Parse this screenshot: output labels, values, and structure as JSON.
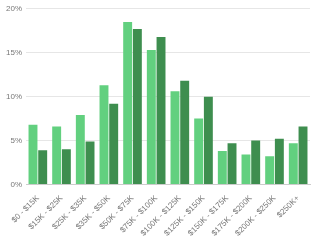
{
  "chart_data": {
    "type": "bar",
    "categories": [
      "$0 - $15K",
      "$15K - $25K",
      "$25K - $35K",
      "$35K - $50K",
      "$50K - $75K",
      "$75K - $100K",
      "$100K - $125K",
      "$125K - $150K",
      "$150K - $175K",
      "$175K - $200K",
      "$200K - $250K",
      "$250K+"
    ],
    "series": [
      {
        "color": "#62d07f",
        "values": [
          6.8,
          6.6,
          7.9,
          11.3,
          18.5,
          15.3,
          10.6,
          7.5,
          3.8,
          3.4,
          3.2,
          4.7
        ]
      },
      {
        "color": "#3e8e4f",
        "values": [
          3.9,
          4.0,
          4.9,
          9.2,
          17.7,
          16.8,
          11.8,
          10.0,
          4.7,
          5.0,
          5.2,
          6.6
        ]
      }
    ],
    "ylim": [
      0,
      20
    ],
    "yticks": [
      {
        "value": 0,
        "label": "0%"
      },
      {
        "value": 5,
        "label": "5%"
      },
      {
        "value": 10,
        "label": "10%"
      },
      {
        "value": 15,
        "label": "15%"
      },
      {
        "value": 20,
        "label": "20%"
      }
    ],
    "grid": true
  }
}
